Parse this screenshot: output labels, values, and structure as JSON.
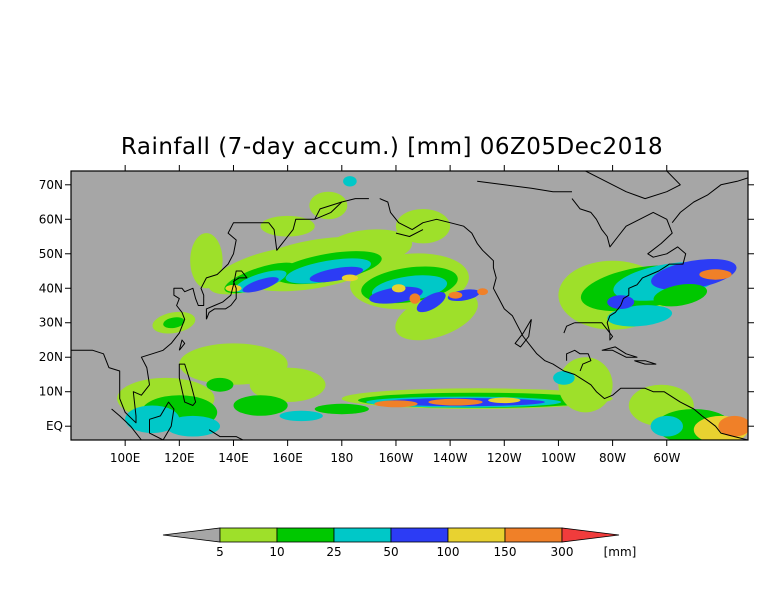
{
  "title": "Rainfall (7-day accum.) [mm] 06Z05Dec2018",
  "map": {
    "lon_range": [
      80,
      330
    ],
    "lat_range": [
      -4,
      74
    ],
    "lon_ticks": [
      {
        "lon": 100,
        "label": "100E"
      },
      {
        "lon": 120,
        "label": "120E"
      },
      {
        "lon": 140,
        "label": "140E"
      },
      {
        "lon": 160,
        "label": "160E"
      },
      {
        "lon": 180,
        "label": "180"
      },
      {
        "lon": 200,
        "label": "160W"
      },
      {
        "lon": 220,
        "label": "140W"
      },
      {
        "lon": 240,
        "label": "120W"
      },
      {
        "lon": 260,
        "label": "100W"
      },
      {
        "lon": 280,
        "label": "80W"
      },
      {
        "lon": 300,
        "label": "60W"
      }
    ],
    "lat_ticks": [
      {
        "lat": 70,
        "label": "70N"
      },
      {
        "lat": 60,
        "label": "60N"
      },
      {
        "lat": 50,
        "label": "50N"
      },
      {
        "lat": 40,
        "label": "40N"
      },
      {
        "lat": 30,
        "label": "30N"
      },
      {
        "lat": 20,
        "label": "20N"
      },
      {
        "lat": 10,
        "label": "10N"
      },
      {
        "lat": 0,
        "label": "EQ"
      }
    ],
    "background_color": "#a6a6a6",
    "coastline_color": "#000000"
  },
  "colorbar": {
    "unit": "[mm]",
    "thresholds": [
      "5",
      "10",
      "25",
      "50",
      "100",
      "150",
      "300"
    ],
    "colors": [
      "#a6a6a6",
      "#9ee02a",
      "#00c800",
      "#00c8c8",
      "#2c3cf5",
      "#e8d230",
      "#f08028",
      "#f03c3c"
    ]
  }
}
